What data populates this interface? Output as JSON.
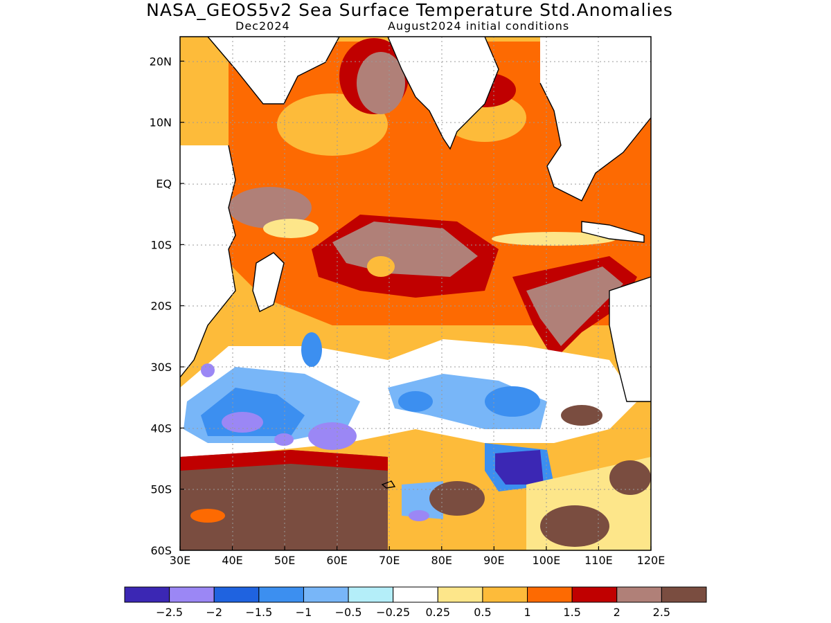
{
  "title": "NASA_GEOS5v2 Sea Surface Temperature Std.Anomalies",
  "subtitle_left": "Dec2024",
  "subtitle_right": "August2024 initial conditions",
  "map": {
    "lon_range": [
      30,
      120
    ],
    "lat_range": [
      -60,
      24
    ],
    "lon_ticks": [
      "30E",
      "40E",
      "50E",
      "60E",
      "70E",
      "80E",
      "90E",
      "100E",
      "110E",
      "120E"
    ],
    "lat_ticks": [
      {
        "label": "20N",
        "lat": 20
      },
      {
        "label": "10N",
        "lat": 10
      },
      {
        "label": "EQ",
        "lat": 0
      },
      {
        "label": "10S",
        "lat": -10
      },
      {
        "label": "20S",
        "lat": -20
      },
      {
        "label": "30S",
        "lat": -30
      },
      {
        "label": "40S",
        "lat": -40
      },
      {
        "label": "50S",
        "lat": -50
      },
      {
        "label": "60S",
        "lat": -60
      }
    ],
    "grid": "dotted"
  },
  "colorbar": {
    "colors": [
      "#3b27b4",
      "#9b87f5",
      "#1f63e0",
      "#3c8ff0",
      "#78b6f8",
      "#b4eef9",
      "#ffffff",
      "#fde68a",
      "#fdbb3a",
      "#fd6a02",
      "#c00000",
      "#b08078",
      "#7a4d40"
    ],
    "labels": [
      "−2.5",
      "−2",
      "−1.5",
      "−1",
      "−0.5",
      "−0.25",
      "0.25",
      "0.5",
      "1",
      "1.5",
      "2",
      "2.5"
    ]
  }
}
